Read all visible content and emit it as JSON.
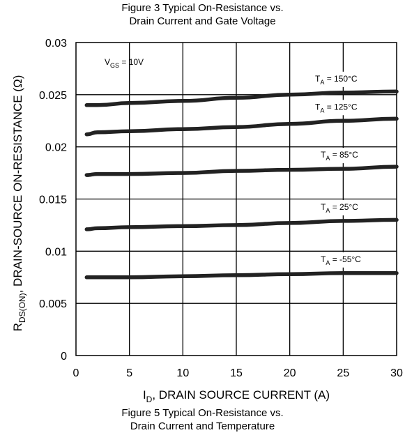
{
  "header_caption": {
    "line1": "Figure 3 Typical On-Resistance vs.",
    "line2": "Drain Current and Gate Voltage"
  },
  "footer_caption": {
    "line1": "Figure 5 Typical On-Resistance vs.",
    "line2": "Drain Current and Temperature"
  },
  "chart_data": {
    "type": "line",
    "xlabel": {
      "main": "I",
      "sub": "D",
      "rest": ", DRAIN SOURCE CURRENT (A)"
    },
    "ylabel": {
      "main": "R",
      "sub": "DS(ON)",
      "rest": ", DRAIN-SOURCE ON-RESISTANCE (Ω)"
    },
    "xlim": [
      0,
      30
    ],
    "ylim": [
      0,
      0.03
    ],
    "x_ticks": [
      "0",
      "5",
      "10",
      "15",
      "20",
      "25",
      "30"
    ],
    "y_ticks": [
      "0",
      "0.005",
      "0.01",
      "0.015",
      "0.02",
      "0.025",
      "0.03"
    ],
    "grid": true,
    "condition": {
      "main": "V",
      "sub": "GS",
      "rest": " = 10V"
    },
    "series": [
      {
        "name": "T_A = 150°C",
        "label_main": "T",
        "label_sub": "A",
        "label_rest": " = 150°C",
        "x": [
          1,
          2,
          5,
          10,
          15,
          20,
          25,
          30
        ],
        "y": [
          0.024,
          0.024,
          0.0242,
          0.0244,
          0.0247,
          0.025,
          0.0252,
          0.0253
        ]
      },
      {
        "name": "T_A = 125°C",
        "label_main": "T",
        "label_sub": "A",
        "label_rest": " = 125°C",
        "x": [
          1,
          2,
          5,
          10,
          15,
          20,
          25,
          30
        ],
        "y": [
          0.0212,
          0.0214,
          0.0215,
          0.0217,
          0.0219,
          0.0222,
          0.0225,
          0.0227
        ]
      },
      {
        "name": "T_A = 85°C",
        "label_main": "T",
        "label_sub": "A",
        "label_rest": " = 85°C",
        "x": [
          1,
          2,
          5,
          10,
          15,
          20,
          25,
          30
        ],
        "y": [
          0.0173,
          0.0174,
          0.0174,
          0.0175,
          0.0177,
          0.0178,
          0.0179,
          0.0181
        ]
      },
      {
        "name": "T_A = 25°C",
        "label_main": "T",
        "label_sub": "A",
        "label_rest": " = 25°C",
        "x": [
          1,
          2,
          5,
          10,
          15,
          20,
          25,
          30
        ],
        "y": [
          0.0121,
          0.0122,
          0.0123,
          0.0124,
          0.0125,
          0.0127,
          0.0129,
          0.013
        ]
      },
      {
        "name": "T_A = -55°C",
        "label_main": "T",
        "label_sub": "A",
        "label_rest": " = -55°C",
        "x": [
          1,
          2,
          5,
          10,
          15,
          20,
          25,
          30
        ],
        "y": [
          0.0075,
          0.0075,
          0.0075,
          0.0076,
          0.0077,
          0.0078,
          0.0079,
          0.0079
        ]
      }
    ]
  }
}
